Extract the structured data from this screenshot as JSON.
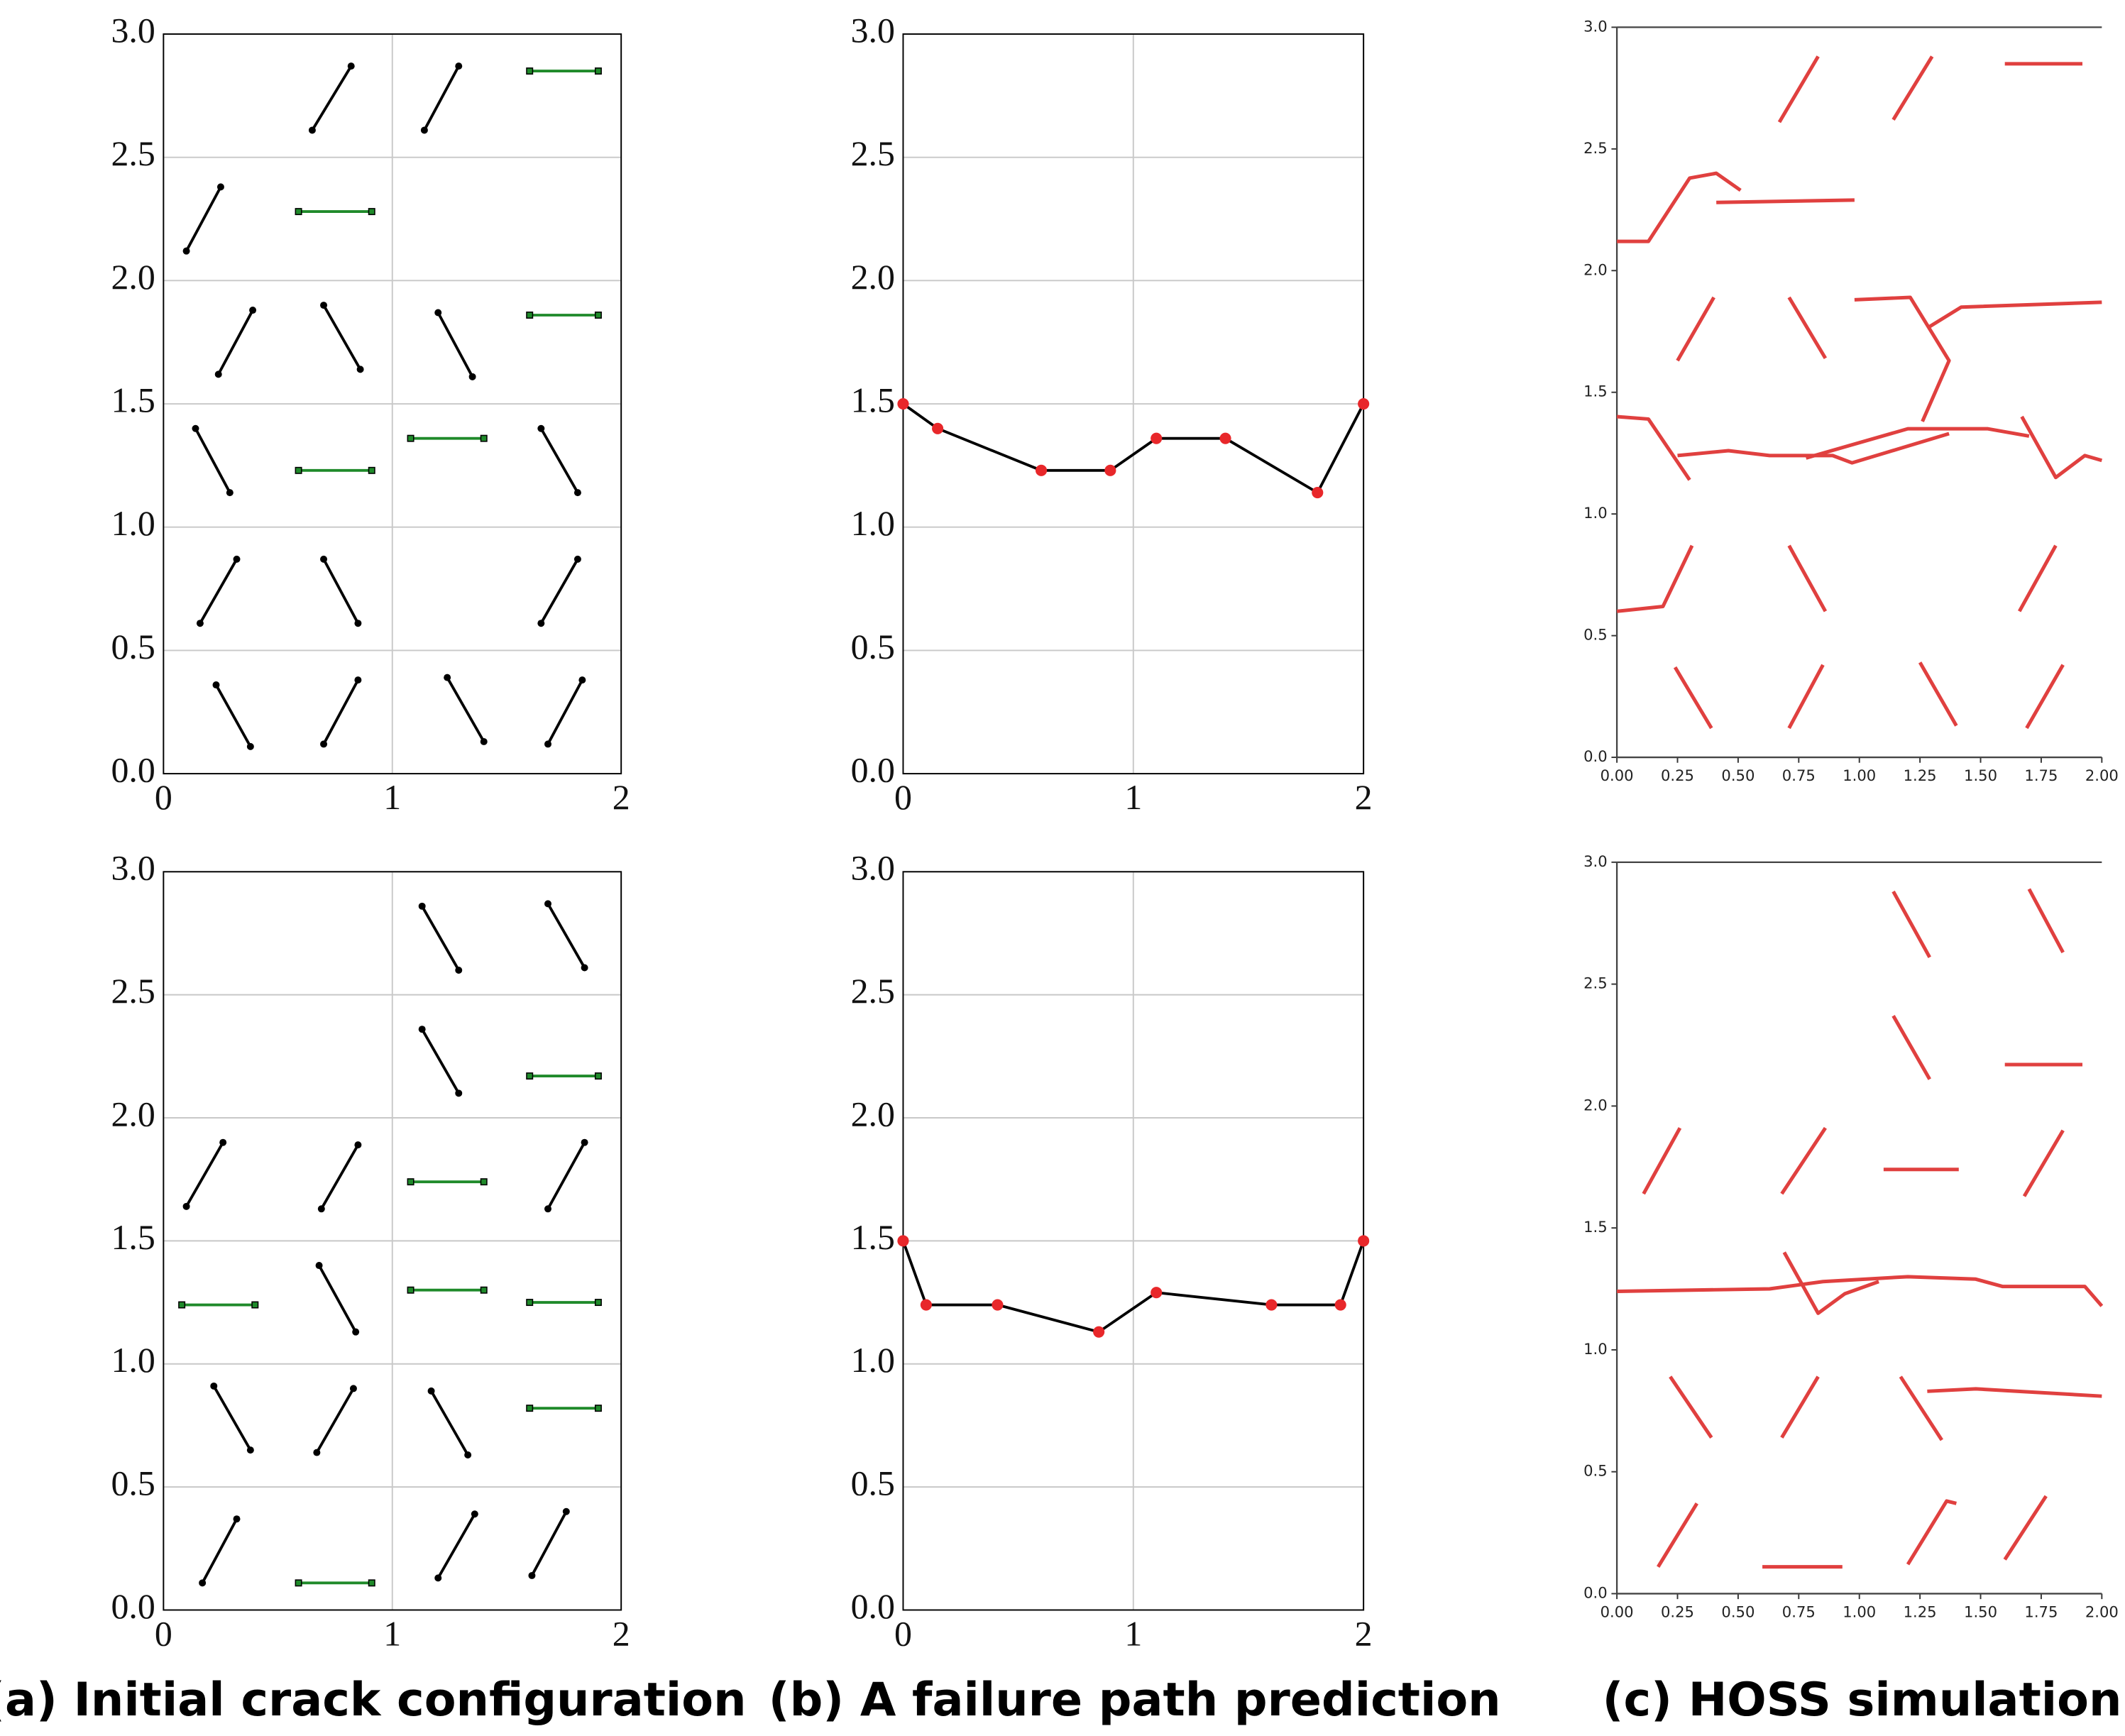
{
  "captions": [
    "(a) Initial crack configuration",
    "(b) A failure path prediction",
    "(c) HOSS simulation"
  ],
  "chart_data": [
    {
      "type": "line",
      "grid": true,
      "xlim": [
        0,
        2
      ],
      "ylim": [
        0,
        3
      ],
      "xticks": [
        0,
        1,
        2
      ],
      "yticks": [
        {
          "value": 0,
          "label": "0.0"
        },
        0.5,
        {
          "value": 1,
          "label": "1.0"
        },
        1.5,
        {
          "value": 2,
          "label": "2.0"
        },
        2.5,
        {
          "value": 3,
          "label": "3.0"
        }
      ],
      "series": [
        {
          "color": "#000000",
          "marker": "circle",
          "marker_color": "#000000",
          "x": [
            0.65,
            0.82,
            null,
            1.14,
            1.29,
            null,
            0.1,
            0.25,
            null,
            0.24,
            0.39,
            null,
            0.7,
            0.86,
            null,
            1.2,
            1.35,
            null,
            0.14,
            0.29,
            null,
            1.65,
            1.81,
            null,
            0.16,
            0.32,
            null,
            0.7,
            0.85,
            null,
            1.65,
            1.81,
            null,
            0.23,
            0.38,
            null,
            0.7,
            0.85,
            null,
            1.24,
            1.4,
            null,
            1.68,
            1.83
          ],
          "values": [
            2.61,
            2.87,
            null,
            2.61,
            2.87,
            null,
            2.12,
            2.38,
            null,
            1.62,
            1.88,
            null,
            1.9,
            1.64,
            null,
            1.87,
            1.61,
            null,
            1.4,
            1.14,
            null,
            1.4,
            1.14,
            null,
            0.61,
            0.87,
            null,
            0.87,
            0.61,
            null,
            0.61,
            0.87,
            null,
            0.36,
            0.11,
            null,
            0.12,
            0.38,
            null,
            0.39,
            0.13,
            null,
            0.12,
            0.38
          ]
        },
        {
          "color": "#1f8a2a",
          "marker": "square",
          "marker_color": "#1f8a2a",
          "x": [
            1.6,
            1.9,
            null,
            0.59,
            0.91,
            null,
            1.6,
            1.9,
            null,
            1.08,
            1.4,
            null,
            0.59,
            0.91
          ],
          "values": [
            2.85,
            2.85,
            null,
            2.28,
            2.28,
            null,
            1.86,
            1.86,
            null,
            1.36,
            1.36,
            null,
            1.23,
            1.23
          ]
        }
      ]
    },
    {
      "type": "line",
      "grid": true,
      "xlim": [
        0,
        2
      ],
      "ylim": [
        0,
        3
      ],
      "xticks": [
        0,
        1,
        2
      ],
      "yticks": [
        {
          "value": 0,
          "label": "0.0"
        },
        0.5,
        {
          "value": 1,
          "label": "1.0"
        },
        1.5,
        {
          "value": 2,
          "label": "2.0"
        },
        2.5,
        {
          "value": 3,
          "label": "3.0"
        }
      ],
      "series": [
        {
          "color": "#000000",
          "marker": "circle",
          "marker_color": "#e8272a",
          "x": [
            0,
            0.15,
            0.6,
            0.9,
            1.1,
            1.4,
            1.8,
            2
          ],
          "values": [
            1.5,
            1.4,
            1.23,
            1.23,
            1.36,
            1.36,
            1.14,
            1.5
          ]
        }
      ]
    },
    {
      "type": "line",
      "grid": false,
      "xlim": [
        0,
        2
      ],
      "ylim": [
        0,
        3
      ],
      "xticks": [
        {
          "value": 0,
          "label": "0.00"
        },
        0.25,
        {
          "value": 0.5,
          "label": "0.50"
        },
        0.75,
        {
          "value": 1,
          "label": "1.00"
        },
        1.25,
        {
          "value": 1.5,
          "label": "1.50"
        },
        1.75,
        {
          "value": 2,
          "label": "2.00"
        }
      ],
      "yticks": [
        {
          "value": 0,
          "label": "0.0"
        },
        0.5,
        {
          "value": 1,
          "label": "1.0"
        },
        1.5,
        {
          "value": 2,
          "label": "2.0"
        },
        2.5,
        {
          "value": 3,
          "label": "3.0"
        }
      ],
      "series": [
        {
          "color": "#e0403f",
          "x": [
            0.67,
            0.83,
            null,
            1.14,
            1.3,
            null,
            1.6,
            1.92,
            null,
            0,
            0.13,
            0.3,
            0.41,
            0.51,
            null,
            0.41,
            0.98,
            null,
            0.25,
            0.4,
            null,
            0.71,
            0.86,
            null,
            0.98,
            1.21,
            1.37,
            1.26,
            null,
            1.29,
            1.42,
            2,
            null,
            0,
            0.13,
            0.3,
            null,
            0.25,
            0.46,
            0.63,
            0.89,
            0.97,
            1.37,
            null,
            0.78,
            1.2,
            1.53,
            1.7,
            null,
            1.67,
            1.81,
            1.93,
            2,
            null,
            0,
            0.19,
            0.31,
            null,
            0.71,
            0.86,
            null,
            1.66,
            1.81,
            null,
            0.24,
            0.39,
            null,
            0.71,
            0.85,
            null,
            1.25,
            1.4,
            null,
            1.69,
            1.84
          ],
          "values": [
            2.61,
            2.88,
            null,
            2.62,
            2.88,
            null,
            2.85,
            2.85,
            null,
            2.12,
            2.12,
            2.38,
            2.4,
            2.33,
            null,
            2.28,
            2.29,
            null,
            1.63,
            1.89,
            null,
            1.89,
            1.64,
            null,
            1.88,
            1.89,
            1.63,
            1.38,
            null,
            1.77,
            1.85,
            1.87,
            null,
            1.4,
            1.39,
            1.14,
            null,
            1.24,
            1.26,
            1.24,
            1.24,
            1.21,
            1.33,
            null,
            1.23,
            1.35,
            1.35,
            1.32,
            null,
            1.4,
            1.15,
            1.24,
            1.22,
            null,
            0.6,
            0.62,
            0.87,
            null,
            0.87,
            0.6,
            null,
            0.6,
            0.87,
            null,
            0.37,
            0.12,
            null,
            0.12,
            0.38,
            null,
            0.39,
            0.13,
            null,
            0.12,
            0.38
          ]
        }
      ]
    },
    {
      "type": "line",
      "grid": true,
      "xlim": [
        0,
        2
      ],
      "ylim": [
        0,
        3
      ],
      "xticks": [
        0,
        1,
        2
      ],
      "yticks": [
        {
          "value": 0,
          "label": "0.0"
        },
        0.5,
        {
          "value": 1,
          "label": "1.0"
        },
        1.5,
        {
          "value": 2,
          "label": "2.0"
        },
        2.5,
        {
          "value": 3,
          "label": "3.0"
        }
      ],
      "series": [
        {
          "color": "#000000",
          "marker": "circle",
          "marker_color": "#000000",
          "x": [
            1.13,
            1.29,
            null,
            1.68,
            1.84,
            null,
            1.13,
            1.29,
            null,
            0.1,
            0.26,
            null,
            0.69,
            0.85,
            null,
            1.68,
            1.84,
            null,
            0.68,
            0.84,
            null,
            0.22,
            0.38,
            null,
            0.67,
            0.83,
            null,
            1.17,
            1.33,
            null,
            0.17,
            0.32,
            null,
            1.2,
            1.36,
            null,
            1.61,
            1.76
          ],
          "values": [
            2.86,
            2.6,
            null,
            2.87,
            2.61,
            null,
            2.36,
            2.1,
            null,
            1.64,
            1.9,
            null,
            1.63,
            1.89,
            null,
            1.63,
            1.9,
            null,
            1.4,
            1.13,
            null,
            0.91,
            0.65,
            null,
            0.64,
            0.9,
            null,
            0.89,
            0.63,
            null,
            0.11,
            0.37,
            null,
            0.13,
            0.39,
            null,
            0.14,
            0.4
          ]
        },
        {
          "color": "#1f8a2a",
          "marker": "square",
          "marker_color": "#1f8a2a",
          "x": [
            1.6,
            1.9,
            null,
            1.08,
            1.4,
            null,
            1.08,
            1.4,
            null,
            1.6,
            1.9,
            null,
            0.08,
            0.4,
            null,
            1.6,
            1.9,
            null,
            0.59,
            0.91
          ],
          "values": [
            2.17,
            2.17,
            null,
            1.74,
            1.74,
            null,
            1.3,
            1.3,
            null,
            1.25,
            1.25,
            null,
            1.24,
            1.24,
            null,
            0.82,
            0.82,
            null,
            0.11,
            0.11
          ]
        }
      ]
    },
    {
      "type": "line",
      "grid": true,
      "xlim": [
        0,
        2
      ],
      "ylim": [
        0,
        3
      ],
      "xticks": [
        0,
        1,
        2
      ],
      "yticks": [
        {
          "value": 0,
          "label": "0.0"
        },
        0.5,
        {
          "value": 1,
          "label": "1.0"
        },
        1.5,
        {
          "value": 2,
          "label": "2.0"
        },
        2.5,
        {
          "value": 3,
          "label": "3.0"
        }
      ],
      "series": [
        {
          "color": "#000000",
          "marker": "circle",
          "marker_color": "#e8272a",
          "x": [
            0,
            0.1,
            0.41,
            0.85,
            1.1,
            1.6,
            1.9,
            2
          ],
          "values": [
            1.5,
            1.24,
            1.24,
            1.13,
            1.29,
            1.24,
            1.24,
            1.5
          ]
        }
      ]
    },
    {
      "type": "line",
      "grid": false,
      "xlim": [
        0,
        2
      ],
      "ylim": [
        0,
        3
      ],
      "xticks": [
        {
          "value": 0,
          "label": "0.00"
        },
        0.25,
        {
          "value": 0.5,
          "label": "0.50"
        },
        0.75,
        {
          "value": 1,
          "label": "1.00"
        },
        1.25,
        {
          "value": 1.5,
          "label": "1.50"
        },
        1.75,
        {
          "value": 2,
          "label": "2.00"
        }
      ],
      "yticks": [
        {
          "value": 0,
          "label": "0.0"
        },
        0.5,
        {
          "value": 1,
          "label": "1.0"
        },
        1.5,
        {
          "value": 2,
          "label": "2.0"
        },
        2.5,
        {
          "value": 3,
          "label": "3.0"
        }
      ],
      "series": [
        {
          "color": "#e0403f",
          "x": [
            1.14,
            1.29,
            null,
            1.7,
            1.84,
            null,
            1.14,
            1.29,
            null,
            1.6,
            1.92,
            null,
            0.11,
            0.26,
            null,
            0.68,
            0.86,
            null,
            1.1,
            1.41,
            null,
            1.68,
            1.84,
            null,
            0,
            0.63,
            0.85,
            1.2,
            1.48,
            1.59,
            1.93,
            2,
            null,
            0.69,
            0.83,
            0.94,
            1.08,
            null,
            0.22,
            0.39,
            null,
            0.68,
            0.83,
            null,
            1.17,
            1.34,
            null,
            1.28,
            1.48,
            2,
            null,
            0.17,
            0.33,
            null,
            0.6,
            0.93,
            null,
            1.2,
            1.36,
            1.4,
            null,
            1.6,
            1.77
          ],
          "values": [
            2.88,
            2.61,
            null,
            2.89,
            2.63,
            null,
            2.37,
            2.11,
            null,
            2.17,
            2.17,
            null,
            1.64,
            1.91,
            null,
            1.64,
            1.91,
            null,
            1.74,
            1.74,
            null,
            1.63,
            1.9,
            null,
            1.24,
            1.25,
            1.28,
            1.3,
            1.29,
            1.26,
            1.26,
            1.18,
            null,
            1.4,
            1.15,
            1.23,
            1.28,
            null,
            0.89,
            0.64,
            null,
            0.64,
            0.89,
            null,
            0.89,
            0.63,
            null,
            0.83,
            0.84,
            0.81,
            null,
            0.11,
            0.37,
            null,
            0.11,
            0.11,
            null,
            0.12,
            0.38,
            0.37,
            null,
            0.14,
            0.4
          ]
        }
      ]
    }
  ]
}
